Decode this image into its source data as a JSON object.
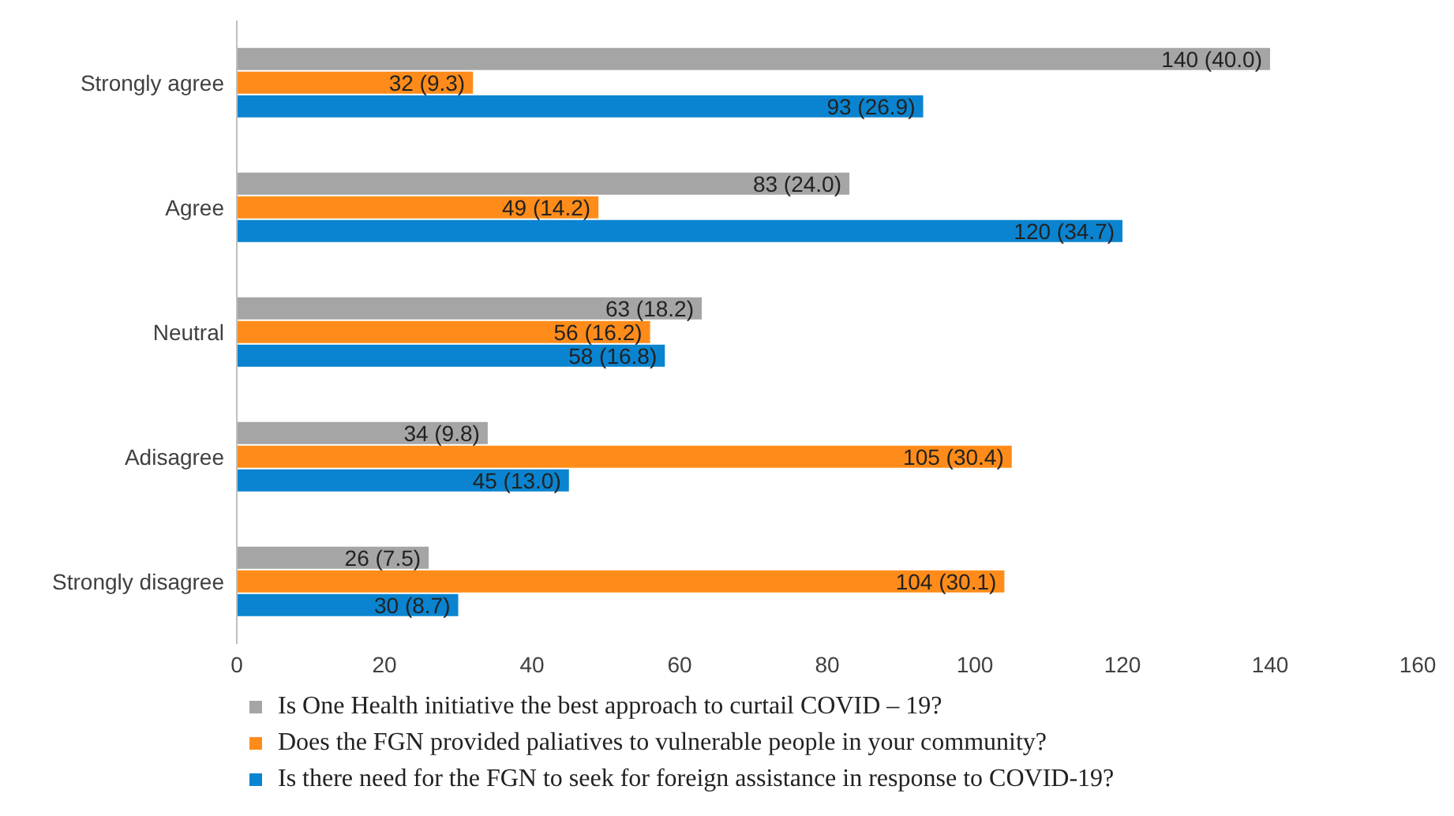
{
  "chart_data": {
    "type": "bar",
    "orientation": "horizontal",
    "categories": [
      "Strongly agree",
      "Agree",
      "Neutral",
      "Adisagree",
      "Strongly disagree"
    ],
    "series": [
      {
        "name": "Is One Health initiative the best approach to curtail COVID – 19?",
        "color": "#a5a5a5",
        "values": [
          140,
          83,
          63,
          34,
          26
        ],
        "value_labels": [
          "140 (40.0)",
          "83 (24.0)",
          "63 (18.2)",
          "34 (9.8)",
          "26 (7.5)"
        ]
      },
      {
        "name": "Does the FGN provided paliatives to vulnerable people in your community?",
        "color": "#ff8c1a",
        "values": [
          32,
          49,
          56,
          105,
          104
        ],
        "value_labels": [
          "32 (9.3)",
          "49 (14.2)",
          "56 (16.2)",
          "105 (30.4)",
          "104 (30.1)"
        ]
      },
      {
        "name": "Is there need for the FGN to seek for foreign assistance in response to COVID-19?",
        "color": "#0a84d0",
        "values": [
          93,
          120,
          58,
          45,
          30
        ],
        "value_labels": [
          "93 (26.9)",
          "120 (34.7)",
          "58 (16.8)",
          "45 (13.0)",
          "30 (8.7)"
        ]
      }
    ],
    "xlim": [
      0,
      160
    ],
    "xticks": [
      0,
      20,
      40,
      60,
      80,
      100,
      120,
      140,
      160
    ],
    "grid": false,
    "legend": "bottom"
  }
}
